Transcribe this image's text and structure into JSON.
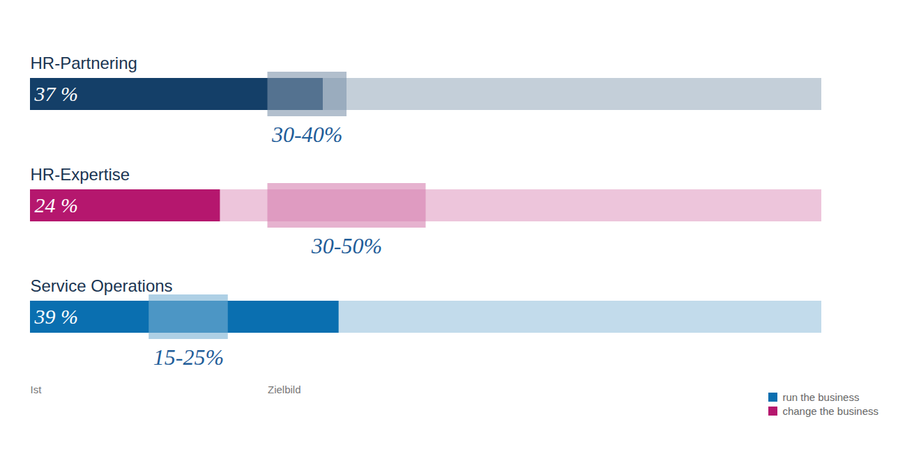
{
  "chart_data": {
    "type": "bar",
    "orientation": "horizontal",
    "categories": [
      "HR-Partnering",
      "HR-Expertise",
      "Service Operations"
    ],
    "values": [
      37,
      24,
      39
    ],
    "value_labels": [
      "37 %",
      "24 %",
      "39 %"
    ],
    "colors": [
      "#143f68",
      "#b5176e",
      "#0a6fb0"
    ],
    "target_low": [
      30,
      30,
      15
    ],
    "target_high": [
      40,
      50,
      25
    ],
    "target_labels": [
      "30-40%",
      "30-50%",
      "15-25%"
    ],
    "annotations": [
      "Ist",
      "Zielbild"
    ],
    "xlim": [
      0,
      100
    ],
    "tick_labels": false,
    "data_labels": true,
    "legend": "bottom right",
    "legend_items": [
      {
        "name": "run the business",
        "color": "#0a6fb0"
      },
      {
        "name": "change the business",
        "color": "#b5176e"
      }
    ]
  }
}
